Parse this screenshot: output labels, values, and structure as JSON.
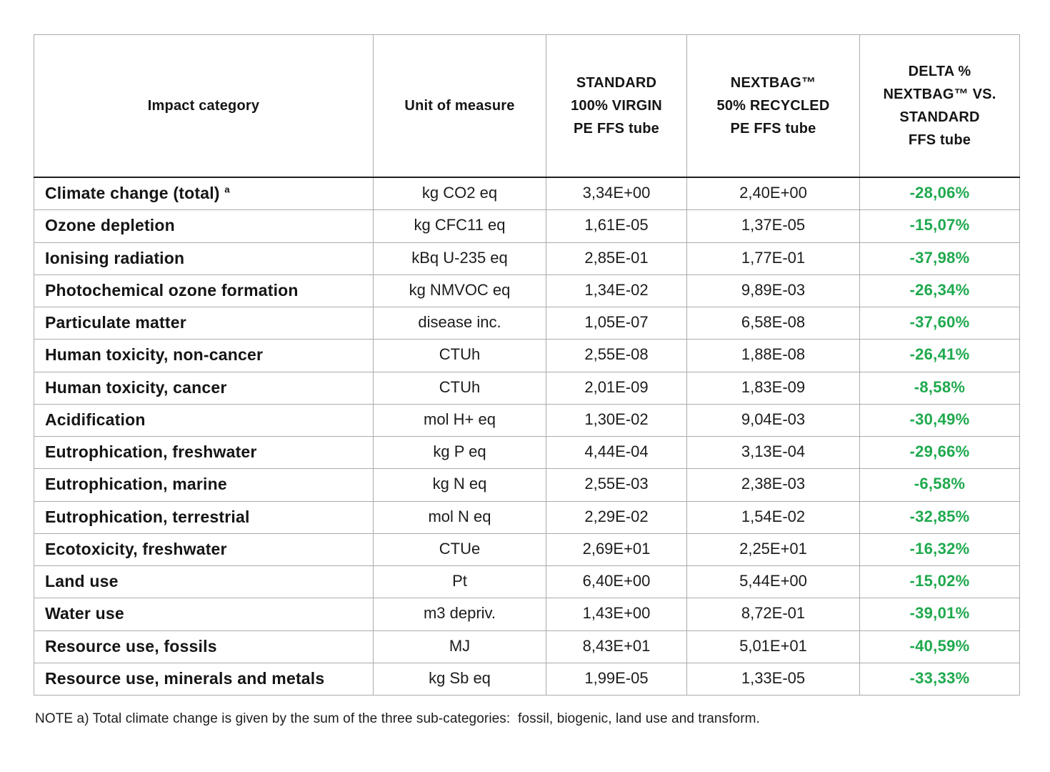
{
  "colors": {
    "delta_green": "#1FA94E",
    "grid_line": "#ababab",
    "header_rule": "#1d1d1d",
    "text": "#151515"
  },
  "table": {
    "columns": [
      {
        "label": "Impact category"
      },
      {
        "label": "Unit of measure"
      },
      {
        "label": "STANDARD\n100% VIRGIN\nPE FFS tube"
      },
      {
        "label": "NEXTBAG™\n50% RECYCLED\nPE FFS tube"
      },
      {
        "label": "DELTA %\nNEXTBAG™ VS.\nSTANDARD\nFFS tube"
      }
    ],
    "rows": [
      {
        "category": "Climate change (total) ",
        "sup": "a",
        "unit": "kg CO2 eq",
        "standard": "3,34E+00",
        "nextbag": "2,40E+00",
        "delta": "-28,06%"
      },
      {
        "category": "Ozone depletion",
        "sup": "",
        "unit": "kg CFC11 eq",
        "standard": "1,61E-05",
        "nextbag": "1,37E-05",
        "delta": "-15,07%"
      },
      {
        "category": "Ionising radiation",
        "sup": "",
        "unit": "kBq U-235 eq",
        "standard": "2,85E-01",
        "nextbag": "1,77E-01",
        "delta": "-37,98%"
      },
      {
        "category": "Photochemical ozone formation",
        "sup": "",
        "unit": "kg NMVOC eq",
        "standard": "1,34E-02",
        "nextbag": "9,89E-03",
        "delta": "-26,34%"
      },
      {
        "category": "Particulate matter",
        "sup": "",
        "unit": "disease inc.",
        "standard": "1,05E-07",
        "nextbag": "6,58E-08",
        "delta": "-37,60%"
      },
      {
        "category": "Human toxicity, non-cancer",
        "sup": "",
        "unit": "CTUh",
        "standard": "2,55E-08",
        "nextbag": "1,88E-08",
        "delta": "-26,41%"
      },
      {
        "category": "Human toxicity, cancer",
        "sup": "",
        "unit": "CTUh",
        "standard": "2,01E-09",
        "nextbag": "1,83E-09",
        "delta": "-8,58%"
      },
      {
        "category": "Acidification",
        "sup": "",
        "unit": "mol H+ eq",
        "standard": "1,30E-02",
        "nextbag": "9,04E-03",
        "delta": "-30,49%"
      },
      {
        "category": "Eutrophication, freshwater",
        "sup": "",
        "unit": "kg P eq",
        "standard": "4,44E-04",
        "nextbag": "3,13E-04",
        "delta": "-29,66%"
      },
      {
        "category": "Eutrophication, marine",
        "sup": "",
        "unit": "kg N eq",
        "standard": "2,55E-03",
        "nextbag": "2,38E-03",
        "delta": "-6,58%"
      },
      {
        "category": "Eutrophication, terrestrial",
        "sup": "",
        "unit": "mol N eq",
        "standard": "2,29E-02",
        "nextbag": "1,54E-02",
        "delta": "-32,85%"
      },
      {
        "category": "Ecotoxicity, freshwater",
        "sup": "",
        "unit": "CTUe",
        "standard": "2,69E+01",
        "nextbag": "2,25E+01",
        "delta": "-16,32%"
      },
      {
        "category": "Land use",
        "sup": "",
        "unit": "Pt",
        "standard": "6,40E+00",
        "nextbag": "5,44E+00",
        "delta": "-15,02%"
      },
      {
        "category": "Water use",
        "sup": "",
        "unit": "m3 depriv.",
        "standard": "1,43E+00",
        "nextbag": "8,72E-01",
        "delta": "-39,01%"
      },
      {
        "category": "Resource use, fossils",
        "sup": "",
        "unit": "MJ",
        "standard": "8,43E+01",
        "nextbag": "5,01E+01",
        "delta": "-40,59%"
      },
      {
        "category": "Resource use, minerals and metals",
        "sup": "",
        "unit": "kg Sb eq",
        "standard": "1,99E-05",
        "nextbag": "1,33E-05",
        "delta": "-33,33%"
      }
    ]
  },
  "note": "NOTE a) Total climate change is given by the sum of the three sub-categories:  fossil, biogenic, land use and transform."
}
